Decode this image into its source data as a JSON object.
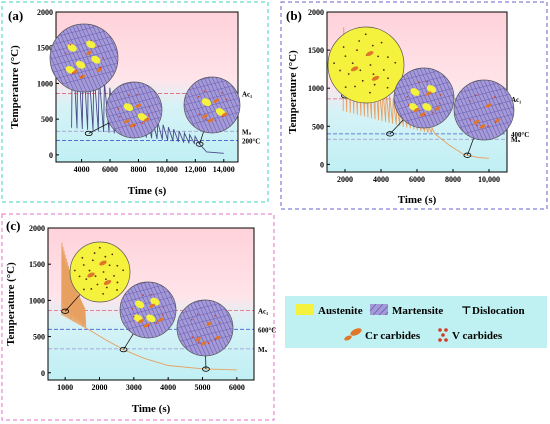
{
  "colors": {
    "austenite": "#f4f23c",
    "martensite": "#a59ad8",
    "martensite_line": "#6a5fb0",
    "cr_carbide": "#e0762a",
    "v_carbide": "#d23a22",
    "curve_a": "#4a4a8a",
    "curve_bc": "#e8a060",
    "legend_bg": "#bff0f2",
    "bg_top": "#ffd6dc",
    "bg_bottom": "#c8f4f6",
    "ac1_line": "#e0607a",
    "ms_line": "#4060d0"
  },
  "chart_data": [
    {
      "panel_label": "(a)",
      "type": "line",
      "xlabel": "Time (s)",
      "ylabel": "Temperature (°C)",
      "xlim": [
        2200,
        15000
      ],
      "ylim": [
        -100,
        2000
      ],
      "xticks": [
        4000,
        6000,
        8000,
        10000,
        12000,
        14000
      ],
      "xtick_labels": [
        "4000",
        "6000",
        "8000",
        "10,000",
        "12,000",
        "14,000"
      ],
      "yticks": [
        0,
        500,
        1000,
        1500,
        2000
      ],
      "ref_lines": [
        {
          "label": "Ac₁",
          "y": 860,
          "kind": "ac1"
        },
        {
          "label": "Mₛ",
          "y": 330,
          "kind": "ms"
        },
        {
          "label": "200°C",
          "y": 200,
          "kind": "hold"
        }
      ],
      "peaks": {
        "start": 3300,
        "end": 12300,
        "count": 24,
        "peak_max": 1650,
        "peak_min": 260,
        "base_start": 380,
        "base_end": 150
      },
      "tail": [
        [
          12300,
          150
        ],
        [
          12800,
          40
        ],
        [
          13800,
          25
        ],
        [
          14000,
          22
        ]
      ]
    },
    {
      "panel_label": "(b)",
      "type": "line",
      "xlabel": "Time (s)",
      "ylabel": "Temperature (°C)",
      "xlim": [
        1000,
        11000
      ],
      "ylim": [
        -100,
        2000
      ],
      "xticks": [
        2000,
        4000,
        6000,
        8000,
        10000
      ],
      "xtick_labels": [
        "2000",
        "4000",
        "6000",
        "8000",
        "10,000"
      ],
      "yticks": [
        0,
        500,
        1000,
        1500,
        2000
      ],
      "ref_lines": [
        {
          "label": "Ac₁",
          "y": 860,
          "kind": "ac1"
        },
        {
          "label": "400°C",
          "y": 400,
          "kind": "hold"
        },
        {
          "label": "Mₛ",
          "y": 330,
          "kind": "ms"
        }
      ],
      "peaks": {
        "start": 1900,
        "end": 7000,
        "count": 26,
        "peak_max": 1800,
        "peak_min": 480,
        "base_start": 700,
        "base_end": 400
      },
      "tail": [
        [
          7000,
          400
        ],
        [
          7800,
          250
        ],
        [
          8600,
          130
        ],
        [
          9400,
          90
        ],
        [
          10000,
          80
        ]
      ]
    },
    {
      "panel_label": "(c)",
      "type": "line",
      "xlabel": "Time (s)",
      "ylabel": "Temperature (°C)",
      "xlim": [
        500,
        6500
      ],
      "ylim": [
        -100,
        2000
      ],
      "xticks": [
        1000,
        2000,
        3000,
        4000,
        5000,
        6000
      ],
      "xtick_labels": [
        "1000",
        "2000",
        "3000",
        "4000",
        "5000",
        "6000"
      ],
      "yticks": [
        0,
        500,
        1000,
        1500,
        2000
      ],
      "ref_lines": [
        {
          "label": "Ac₁",
          "y": 860,
          "kind": "ac1"
        },
        {
          "label": "600°C",
          "y": 600,
          "kind": "hold"
        },
        {
          "label": "Mₛ",
          "y": 330,
          "kind": "ms"
        }
      ],
      "peaks": {
        "start": 900,
        "end": 1600,
        "count": 22,
        "peak_max": 1800,
        "peak_min": 900,
        "base_start": 800,
        "base_end": 620
      },
      "tail": [
        [
          1600,
          620
        ],
        [
          2200,
          450
        ],
        [
          2700,
          320
        ],
        [
          3300,
          200
        ],
        [
          4000,
          100
        ],
        [
          5000,
          55
        ],
        [
          6000,
          40
        ]
      ]
    }
  ],
  "legend": {
    "austenite": "Austenite",
    "martensite": "Martensite",
    "dislocation": "Dislocation",
    "dislocation_symbol": "⊤",
    "cr_carbides": "Cr carbides",
    "v_carbides": "V carbides"
  }
}
